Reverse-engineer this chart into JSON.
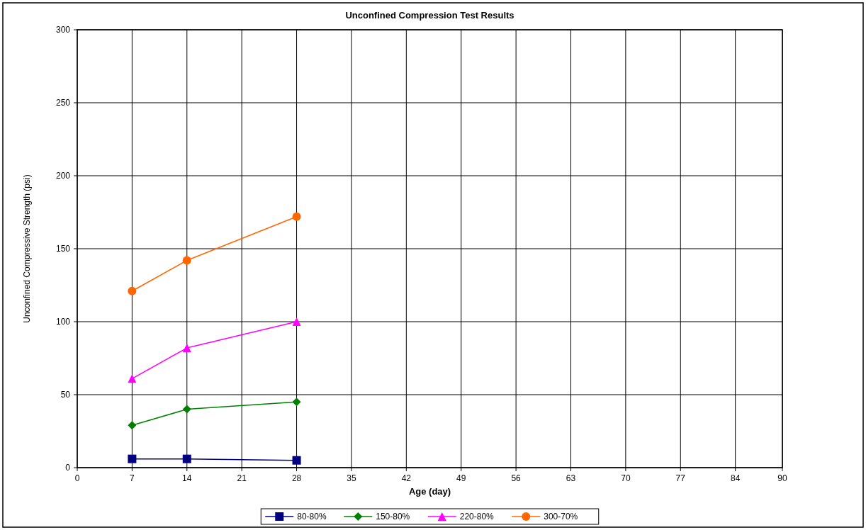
{
  "chart_data": {
    "type": "line",
    "title": "Unconfined Compression Test Results",
    "xlabel": "Age (day)",
    "ylabel": "Unconfined Compressive Strength (psi)",
    "x": [
      7,
      14,
      28
    ],
    "series": [
      {
        "name": "80-80%",
        "color": "#000080",
        "values": [
          6,
          6,
          5
        ],
        "marker": "square"
      },
      {
        "name": "150-80%",
        "color": "#008000",
        "values": [
          29,
          40,
          45
        ],
        "marker": "diamond"
      },
      {
        "name": "220-80%",
        "color": "#ff00ff",
        "values": [
          61,
          82,
          100
        ],
        "marker": "triangle"
      },
      {
        "name": "300-70%",
        "color": "#ff6600",
        "values": [
          121,
          142,
          172
        ],
        "marker": "circle"
      }
    ],
    "xlim": [
      0,
      90
    ],
    "xticks": [
      0,
      7,
      14,
      21,
      28,
      35,
      42,
      49,
      56,
      63,
      70,
      77,
      84,
      90
    ],
    "ylim": [
      0,
      300
    ],
    "yticks": [
      0,
      50,
      100,
      150,
      200,
      250,
      300
    ],
    "grid": true,
    "legend": "bottom",
    "line_style": "solid"
  }
}
